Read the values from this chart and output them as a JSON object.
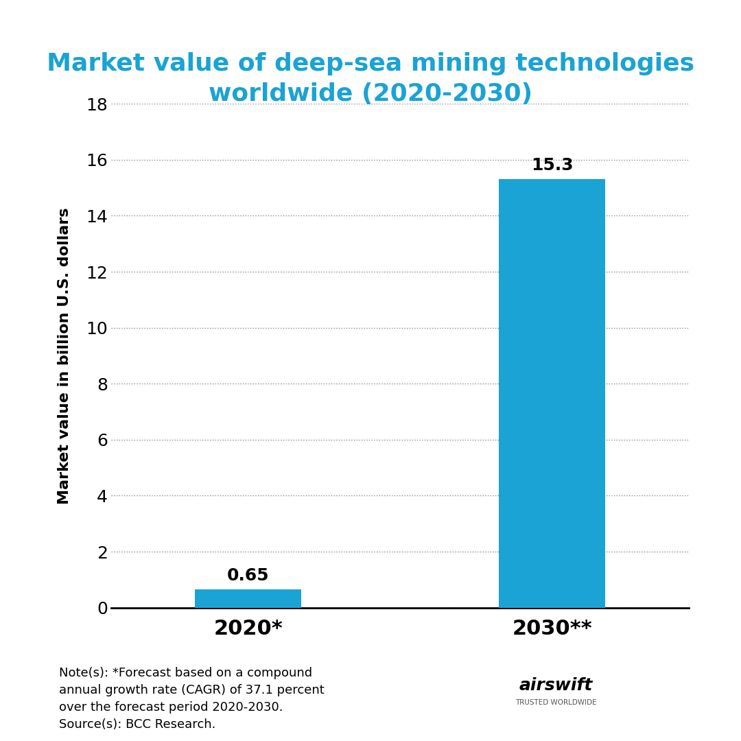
{
  "title_line1": "Market value of deep-sea mining technologies",
  "title_line2": "worldwide (2020-2030)",
  "title_color": "#1aa3d4",
  "categories": [
    "2020*",
    "2030**"
  ],
  "values": [
    0.65,
    15.3
  ],
  "bar_color": "#1aa3d4",
  "ylabel": "Market value in billion U.S. dollars",
  "ylim": [
    0,
    18
  ],
  "yticks": [
    0,
    2,
    4,
    6,
    8,
    10,
    12,
    14,
    16,
    18
  ],
  "bar_labels": [
    "0.65",
    "15.3"
  ],
  "note_text": "Note(s): *Forecast based on a compound\nannual growth rate (CAGR) of 37.1 percent\nover the forecast period 2020-2030.\nSource(s): BCC Research.",
  "background_color": "#ffffff",
  "title_fontsize": 26,
  "ylabel_fontsize": 16,
  "tick_fontsize": 18,
  "xtick_fontsize": 22,
  "bar_label_fontsize": 18,
  "note_fontsize": 13
}
